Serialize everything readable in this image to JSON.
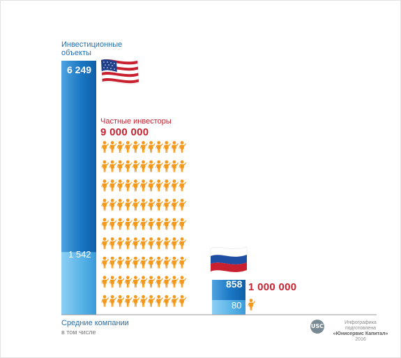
{
  "labels": {
    "investment_objects": "Инвестиционные объекты",
    "private_investors": "Частные инвесторы",
    "mid_companies": "Средние компании",
    "including": "в том числе",
    "credit_line1": "Инфографика подготовлена",
    "credit_line2": "«Юнисервис Капитал»",
    "credit_year": "2016",
    "logo_text": "USC"
  },
  "icons": {
    "usa_flag": "usa-flag-icon",
    "russia_flag": "russia-flag-icon",
    "person": "person-icon"
  },
  "colors": {
    "bar_dark": "#1b78c4",
    "bar_light": "#5ab4e8",
    "person": "#f39a1e",
    "accent_red": "#c8202f",
    "label_blue": "#1f6fb4"
  },
  "chart_data": {
    "type": "bar",
    "categories": [
      "США",
      "Россия"
    ],
    "series": [
      {
        "name": "Инвестиционные объекты",
        "values": [
          6249,
          858
        ]
      },
      {
        "name": "Средние компании",
        "values": [
          1542,
          80
        ]
      }
    ],
    "private_investors": [
      9000000,
      1000000
    ],
    "value_labels": {
      "us_total": "6 249",
      "us_mid": "1 542",
      "ru_total": "858",
      "ru_mid": "80",
      "us_investors": "9 000 000",
      "ru_investors": "1 000 000"
    },
    "person_grid": {
      "rows": 9,
      "cols": 11
    }
  }
}
